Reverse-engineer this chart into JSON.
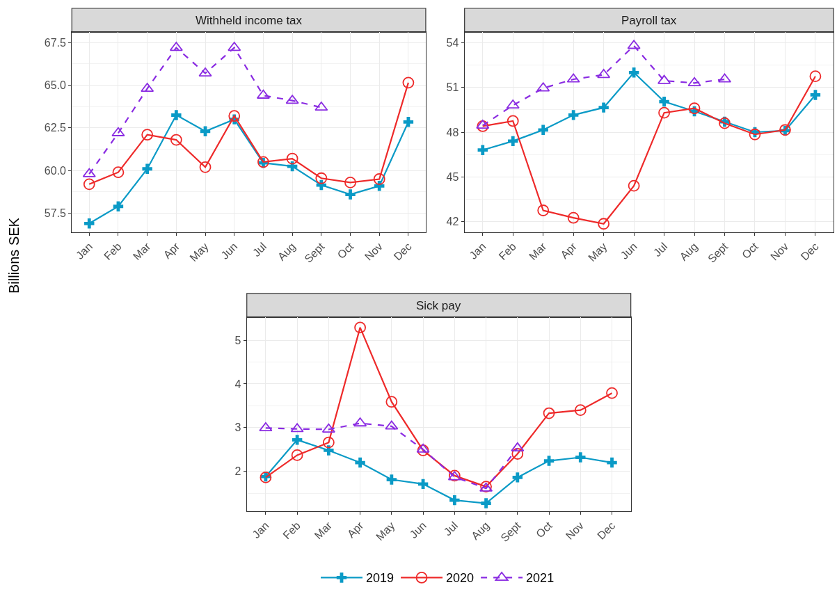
{
  "chart_data": [
    {
      "type": "line",
      "title": "Withheld income tax",
      "ylabel": "Billions SEK",
      "categories": [
        "Jan",
        "Feb",
        "Mar",
        "Apr",
        "May",
        "Jun",
        "Jul",
        "Aug",
        "Sept",
        "Oct",
        "Nov",
        "Dec"
      ],
      "ylim": [
        56.4,
        68.1
      ],
      "yticks": [
        {
          "value": 57.5,
          "label": "57.5"
        },
        {
          "value": 60,
          "label": "60.0"
        },
        {
          "value": 62.5,
          "label": "62.5"
        },
        {
          "value": 65,
          "label": "65.0"
        },
        {
          "value": 67.5,
          "label": "67.5"
        }
      ],
      "grid": true,
      "legend": "bottom",
      "series": [
        {
          "name": "2019",
          "color": "#0a9ac6",
          "marker": "cross",
          "line_style": "solid",
          "values": [
            56.9,
            57.9,
            60.1,
            63.25,
            62.3,
            63.0,
            60.45,
            60.25,
            59.15,
            58.6,
            59.1,
            62.85
          ]
        },
        {
          "name": "2020",
          "color": "#ee2a2a",
          "marker": "circle",
          "line_style": "solid",
          "values": [
            59.2,
            59.9,
            62.1,
            61.8,
            60.2,
            63.2,
            60.5,
            60.7,
            59.55,
            59.3,
            59.5,
            65.15
          ]
        },
        {
          "name": "2021",
          "color": "#8a2be2",
          "marker": "triangle",
          "line_style": "dashed",
          "values": [
            59.8,
            62.2,
            64.8,
            67.2,
            65.7,
            67.2,
            64.4,
            64.1,
            63.7,
            null,
            null,
            null
          ]
        }
      ]
    },
    {
      "type": "line",
      "title": "Payroll tax",
      "categories": [
        "Jan",
        "Feb",
        "Mar",
        "Apr",
        "May",
        "Jun",
        "Jul",
        "Aug",
        "Sept",
        "Oct",
        "Nov",
        "Dec"
      ],
      "ylim": [
        41.3,
        54.7
      ],
      "yticks": [
        42,
        45,
        48,
        51,
        54
      ],
      "grid": true,
      "series": [
        {
          "name": "2019",
          "color": "#0a9ac6",
          "marker": "cross",
          "line_style": "solid",
          "values": [
            46.8,
            47.4,
            48.15,
            49.15,
            49.65,
            52.0,
            50.05,
            49.4,
            48.7,
            48.0,
            48.1,
            50.5
          ]
        },
        {
          "name": "2020",
          "color": "#ee2a2a",
          "marker": "circle",
          "line_style": "solid",
          "values": [
            48.4,
            48.75,
            42.75,
            42.25,
            41.85,
            44.4,
            49.3,
            49.6,
            48.6,
            47.85,
            48.15,
            51.75
          ]
        },
        {
          "name": "2021",
          "color": "#8a2be2",
          "marker": "triangle",
          "line_style": "dashed",
          "values": [
            48.45,
            49.8,
            50.95,
            51.55,
            51.85,
            53.8,
            51.45,
            51.3,
            51.55,
            null,
            null,
            null
          ]
        }
      ]
    },
    {
      "type": "line",
      "title": "Sick pay",
      "categories": [
        "Jan",
        "Feb",
        "Mar",
        "Apr",
        "May",
        "Jun",
        "Jul",
        "Aug",
        "Sept",
        "Oct",
        "Nov",
        "Dec"
      ],
      "ylim": [
        1.09,
        5.52
      ],
      "yticks": [
        2,
        3,
        4,
        5
      ],
      "grid": true,
      "series": [
        {
          "name": "2019",
          "color": "#0a9ac6",
          "marker": "cross",
          "line_style": "solid",
          "values": [
            1.88,
            2.72,
            2.48,
            2.2,
            1.81,
            1.71,
            1.34,
            1.27,
            1.86,
            2.24,
            2.32,
            2.2
          ]
        },
        {
          "name": "2020",
          "color": "#ee2a2a",
          "marker": "circle",
          "line_style": "solid",
          "values": [
            1.86,
            2.37,
            2.66,
            5.29,
            3.59,
            2.48,
            1.9,
            1.65,
            2.4,
            3.33,
            3.4,
            3.79
          ]
        },
        {
          "name": "2021",
          "color": "#8a2be2",
          "marker": "triangle",
          "line_style": "dashed",
          "values": [
            2.99,
            2.97,
            2.96,
            3.1,
            3.03,
            2.5,
            1.87,
            1.61,
            2.53,
            null,
            null,
            null
          ]
        }
      ]
    }
  ]
}
